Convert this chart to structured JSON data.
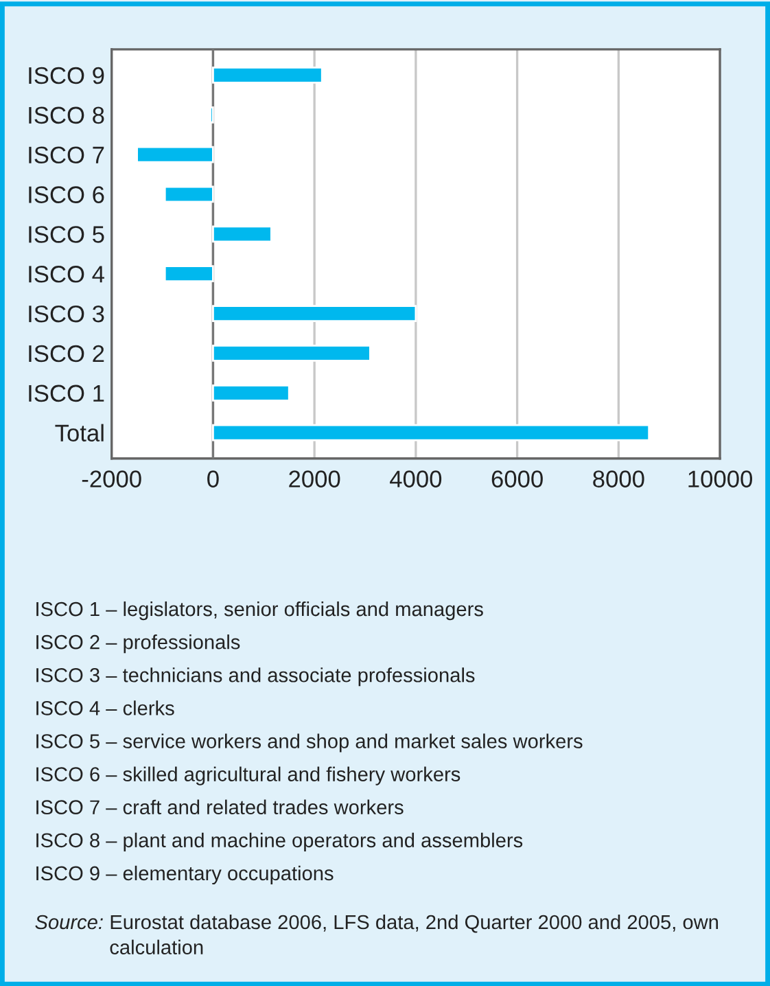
{
  "chart_data": {
    "type": "bar",
    "orientation": "horizontal",
    "categories": [
      "ISCO 9",
      "ISCO 8",
      "ISCO 7",
      "ISCO 6",
      "ISCO 5",
      "ISCO 4",
      "ISCO 3",
      "ISCO 2",
      "ISCO 1",
      "Total"
    ],
    "values": [
      2150,
      -50,
      -1500,
      -950,
      1150,
      -950,
      4000,
      3100,
      1500,
      8600
    ],
    "color": "#00b8ee",
    "xlim": [
      -2000,
      10000
    ],
    "xticks": [
      -2000,
      0,
      2000,
      4000,
      6000,
      8000,
      10000
    ],
    "grid": "x",
    "annotations": [
      "ISCO 1 – legislators, senior officials and managers",
      "ISCO 2 – professionals",
      "ISCO 3 – technicians and associate professionals",
      "ISCO 4 – clerks",
      "ISCO 5 – service workers and shop and market sales workers",
      "ISCO 6 – skilled agricultural and fishery workers",
      "ISCO 7 – craft and related trades workers",
      "ISCO 8 – plant and machine operators and assemblers",
      "ISCO 9 – elementary occupations",
      "Source: Eurostat database 2006, LFS data, 2nd Quarter 2000 and 2005, own calculation"
    ]
  }
}
